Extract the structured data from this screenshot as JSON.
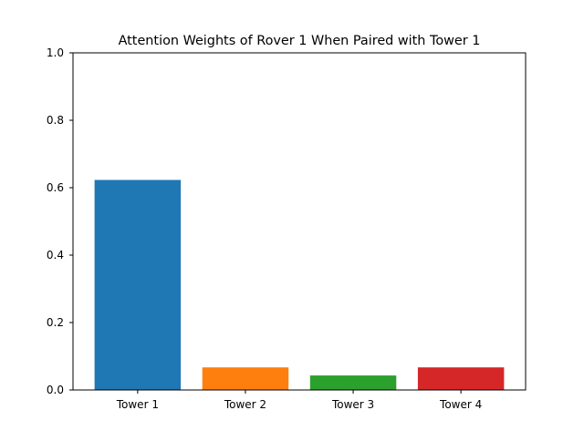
{
  "chart_data": {
    "type": "bar",
    "title": "Attention Weights of Rover 1 When Paired with Tower 1",
    "xlabel": "",
    "ylabel": "",
    "categories": [
      "Tower 1",
      "Tower 2",
      "Tower 3",
      "Tower 4"
    ],
    "values": [
      0.623,
      0.067,
      0.043,
      0.067
    ],
    "colors": [
      "#1f77b4",
      "#ff7f0e",
      "#2ca02c",
      "#d62728"
    ],
    "ylim": [
      0,
      1.0
    ],
    "yticks": [
      "0.0",
      "0.2",
      "0.4",
      "0.6",
      "0.8",
      "1.0"
    ],
    "grid": false,
    "legend": "none"
  }
}
